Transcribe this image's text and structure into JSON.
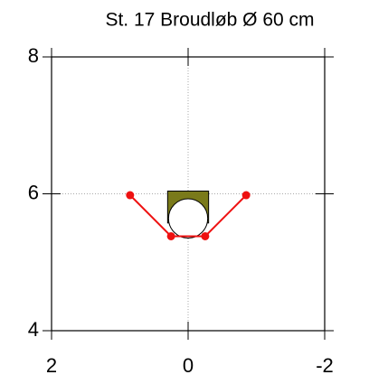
{
  "chart_data": {
    "type": "line",
    "title": "St. 17    Broudløb Ø 60 cm",
    "x": [
      0.85,
      0.25,
      -0.25,
      -0.85
    ],
    "series": [
      {
        "color": "#ee1111",
        "values": [
          5.98,
          5.38,
          5.38,
          5.98
        ]
      }
    ],
    "xlim": [
      2,
      -2
    ],
    "xticks": [
      2,
      0,
      -2
    ],
    "ylim": [
      4,
      8
    ],
    "yticks": [
      4,
      6,
      8
    ],
    "grid": true,
    "culvert": {
      "x": 0,
      "y": 5.64,
      "radius": 0.3,
      "top": 6.04,
      "color": "#7a7a1a"
    }
  }
}
